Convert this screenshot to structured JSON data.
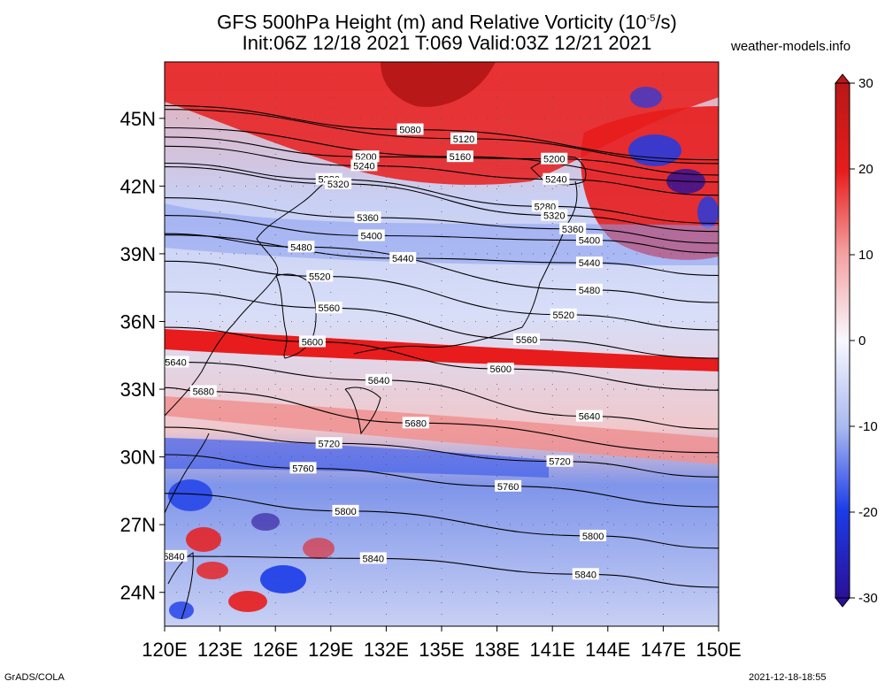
{
  "header": {
    "title_line1": "GFS 500hPa Height (m) and Relative Vorticity (10",
    "title_sup": "-5",
    "title_end": "/s)",
    "title_line2": "Init:06Z 12/18 2021 T:069 Valid:03Z 12/21 2021",
    "brand": "weather-models.info"
  },
  "footer": {
    "left": "GrADS/COLA",
    "right": "2021-12-18-18:55"
  },
  "colors": {
    "deep_red": "#b81818",
    "red": "#e81c1c",
    "light_red": "#f4a0a0",
    "white": "#f8f8ff",
    "light_blue": "#a8b8f0",
    "blue": "#1c3ce8",
    "deep_blue": "#2a1098"
  },
  "map": {
    "lat_labels": [
      "45N",
      "42N",
      "39N",
      "36N",
      "33N",
      "30N",
      "27N",
      "24N"
    ],
    "lon_labels": [
      "120E",
      "123E",
      "126E",
      "129E",
      "132E",
      "135E",
      "138E",
      "141E",
      "144E",
      "147E",
      "150E"
    ],
    "lat_range": [
      22.5,
      47.5
    ],
    "lon_range": [
      120,
      150
    ],
    "contour_labels": [
      {
        "text": "5080",
        "lon": 133.3,
        "lat": 44.5
      },
      {
        "text": "5120",
        "lon": 136.2,
        "lat": 44.1
      },
      {
        "text": "5160",
        "lon": 136.0,
        "lat": 43.3
      },
      {
        "text": "5200",
        "lon": 130.9,
        "lat": 43.3
      },
      {
        "text": "5240",
        "lon": 130.8,
        "lat": 42.9
      },
      {
        "text": "5200",
        "lon": 141.1,
        "lat": 43.2
      },
      {
        "text": "5240",
        "lon": 141.2,
        "lat": 42.3
      },
      {
        "text": "5280",
        "lon": 128.9,
        "lat": 42.3
      },
      {
        "text": "5320",
        "lon": 129.4,
        "lat": 42.1
      },
      {
        "text": "5280",
        "lon": 140.6,
        "lat": 41.1
      },
      {
        "text": "5320",
        "lon": 141.1,
        "lat": 40.7
      },
      {
        "text": "5360",
        "lon": 131.0,
        "lat": 40.6
      },
      {
        "text": "5360",
        "lon": 142.1,
        "lat": 40.1
      },
      {
        "text": "5400",
        "lon": 131.2,
        "lat": 39.8
      },
      {
        "text": "5400",
        "lon": 143.0,
        "lat": 39.6
      },
      {
        "text": "5440",
        "lon": 132.9,
        "lat": 38.8
      },
      {
        "text": "5440",
        "lon": 143.0,
        "lat": 38.6
      },
      {
        "text": "5480",
        "lon": 127.4,
        "lat": 39.3
      },
      {
        "text": "5480",
        "lon": 143.0,
        "lat": 37.4
      },
      {
        "text": "5520",
        "lon": 128.4,
        "lat": 38.0
      },
      {
        "text": "5520",
        "lon": 141.6,
        "lat": 36.3
      },
      {
        "text": "5560",
        "lon": 128.9,
        "lat": 36.6
      },
      {
        "text": "5560",
        "lon": 139.6,
        "lat": 35.2
      },
      {
        "text": "5600",
        "lon": 128.0,
        "lat": 35.1
      },
      {
        "text": "5600",
        "lon": 138.2,
        "lat": 33.9
      },
      {
        "text": "5640",
        "lon": 120.6,
        "lat": 34.2
      },
      {
        "text": "5640",
        "lon": 131.6,
        "lat": 33.4
      },
      {
        "text": "5640",
        "lon": 143.0,
        "lat": 31.8
      },
      {
        "text": "5680",
        "lon": 122.1,
        "lat": 32.9
      },
      {
        "text": "5680",
        "lon": 133.6,
        "lat": 31.5
      },
      {
        "text": "5720",
        "lon": 128.9,
        "lat": 30.6
      },
      {
        "text": "5720",
        "lon": 141.4,
        "lat": 29.8
      },
      {
        "text": "5760",
        "lon": 127.5,
        "lat": 29.5
      },
      {
        "text": "5760",
        "lon": 138.6,
        "lat": 28.7
      },
      {
        "text": "5800",
        "lon": 129.8,
        "lat": 27.6
      },
      {
        "text": "5800",
        "lon": 143.2,
        "lat": 26.5
      },
      {
        "text": "5840",
        "lon": 120.5,
        "lat": 25.6
      },
      {
        "text": "5840",
        "lon": 131.3,
        "lat": 25.5
      },
      {
        "text": "5840",
        "lon": 142.8,
        "lat": 24.8
      }
    ]
  },
  "colorbar": {
    "labels": [
      "30",
      "20",
      "10",
      "0",
      "-10",
      "-20",
      "-30"
    ],
    "range": [
      -30,
      30
    ]
  }
}
